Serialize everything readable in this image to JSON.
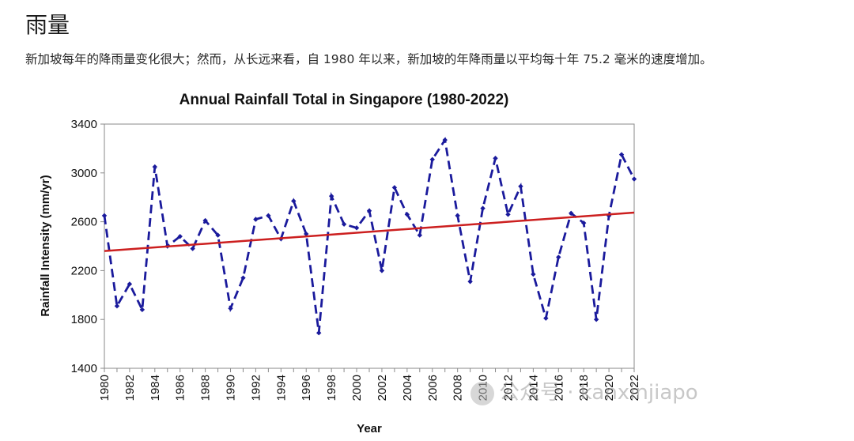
{
  "page": {
    "heading": "雨量",
    "subtitle": "新加坡每年的降雨量变化很大；然而，从长远来看，自 1980 年以来，新加坡的年降雨量以平均每十年 75.2 毫米的速度增加。",
    "watermark": "公众号 · kanxinjiapo"
  },
  "chart_data": {
    "type": "line",
    "title": "Annual Rainfall Total in Singapore (1980-2022)",
    "xlabel": "Year",
    "ylabel": "Rainfall Intensity (mm/yr)",
    "xlim": [
      1980,
      2022
    ],
    "ylim": [
      1400,
      3400
    ],
    "y_ticks": [
      1400,
      1800,
      2200,
      2600,
      3000,
      3400
    ],
    "x_ticks": [
      1980,
      1982,
      1984,
      1986,
      1988,
      1990,
      1992,
      1994,
      1996,
      1998,
      2000,
      2002,
      2004,
      2006,
      2008,
      2010,
      2012,
      2014,
      2016,
      2018,
      2020,
      2022
    ],
    "grid": false,
    "series": [
      {
        "style": "dashed-diamond",
        "color": "#1a1a9c",
        "x": [
          1980,
          1981,
          1982,
          1983,
          1984,
          1985,
          1986,
          1987,
          1988,
          1989,
          1990,
          1991,
          1992,
          1993,
          1994,
          1995,
          1996,
          1997,
          1998,
          1999,
          2000,
          2001,
          2002,
          2003,
          2004,
          2005,
          2006,
          2007,
          2008,
          2009,
          2010,
          2011,
          2012,
          2013,
          2014,
          2015,
          2016,
          2017,
          2018,
          2019,
          2020,
          2021,
          2022
        ],
        "values": [
          2650,
          1910,
          2090,
          1880,
          3050,
          2400,
          2480,
          2380,
          2610,
          2490,
          1890,
          2140,
          2620,
          2650,
          2460,
          2770,
          2500,
          1690,
          2810,
          2580,
          2550,
          2690,
          2200,
          2880,
          2660,
          2490,
          3110,
          3270,
          2650,
          2110,
          2710,
          3120,
          2660,
          2890,
          2170,
          1810,
          2310,
          2670,
          2590,
          1800,
          2650,
          3150,
          2950
        ]
      },
      {
        "style": "trend-line",
        "color": "#cc1f1f",
        "x": [
          1980,
          2022
        ],
        "values": [
          2360,
          2675
        ]
      }
    ]
  }
}
